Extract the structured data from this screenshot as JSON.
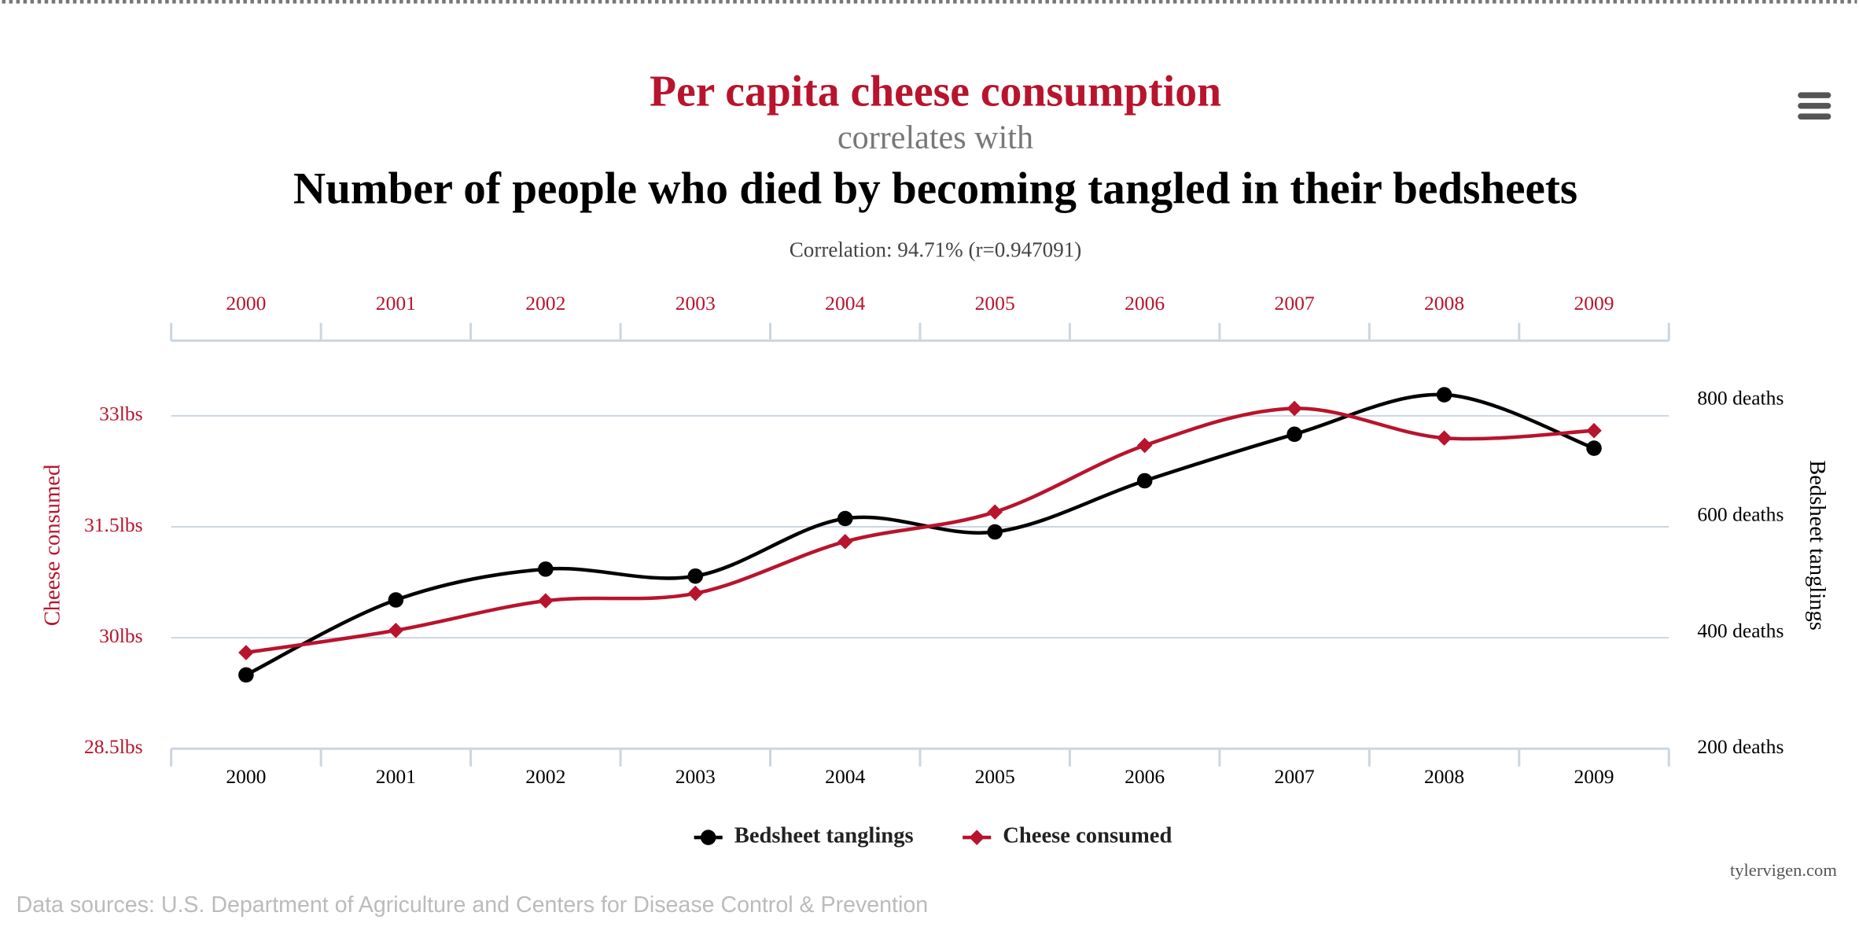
{
  "chart_data": {
    "type": "line",
    "title": "Per capita cheese consumption",
    "connector": "correlates with",
    "subtitle": "Number of people who died by becoming tangled in their bedsheets",
    "correlation": "Correlation: 94.71% (r=0.947091)",
    "ylabel": "Cheese consumed",
    "y2label": "Bedsheet tanglings",
    "categories": [
      "2000",
      "2001",
      "2002",
      "2003",
      "2004",
      "2005",
      "2006",
      "2007",
      "2008",
      "2009"
    ],
    "series": [
      {
        "name": "Bedsheet tanglings",
        "color": "#000000",
        "axis": "y2",
        "marker": "circle",
        "values": [
          327,
          456,
          509,
          497,
          596,
          573,
          661,
          741,
          809,
          717
        ]
      },
      {
        "name": "Cheese consumed",
        "color": "#b8142d",
        "marker": "diamond",
        "values": [
          29.8,
          30.1,
          30.5,
          30.6,
          31.3,
          31.7,
          32.6,
          33.1,
          32.7,
          32.8
        ]
      }
    ],
    "ylim": [
      28.5,
      34
    ],
    "yticks": [
      {
        "value": 28.5,
        "label": "28.5lbs"
      },
      {
        "value": 30,
        "label": "30lbs"
      },
      {
        "value": 31.5,
        "label": "31.5lbs"
      },
      {
        "value": 33,
        "label": "33lbs"
      }
    ],
    "y2lim": [
      200,
      900
    ],
    "y2ticks": [
      {
        "value": 200,
        "label": "200 deaths"
      },
      {
        "value": 400,
        "label": "400 deaths"
      },
      {
        "value": 600,
        "label": "600 deaths"
      },
      {
        "value": 800,
        "label": "800 deaths"
      }
    ],
    "grid": true,
    "legend": "bottom",
    "credit": "tylervigen.com",
    "source": "Data sources: U.S. Department of Agriculture and Centers for Disease Control & Prevention"
  }
}
